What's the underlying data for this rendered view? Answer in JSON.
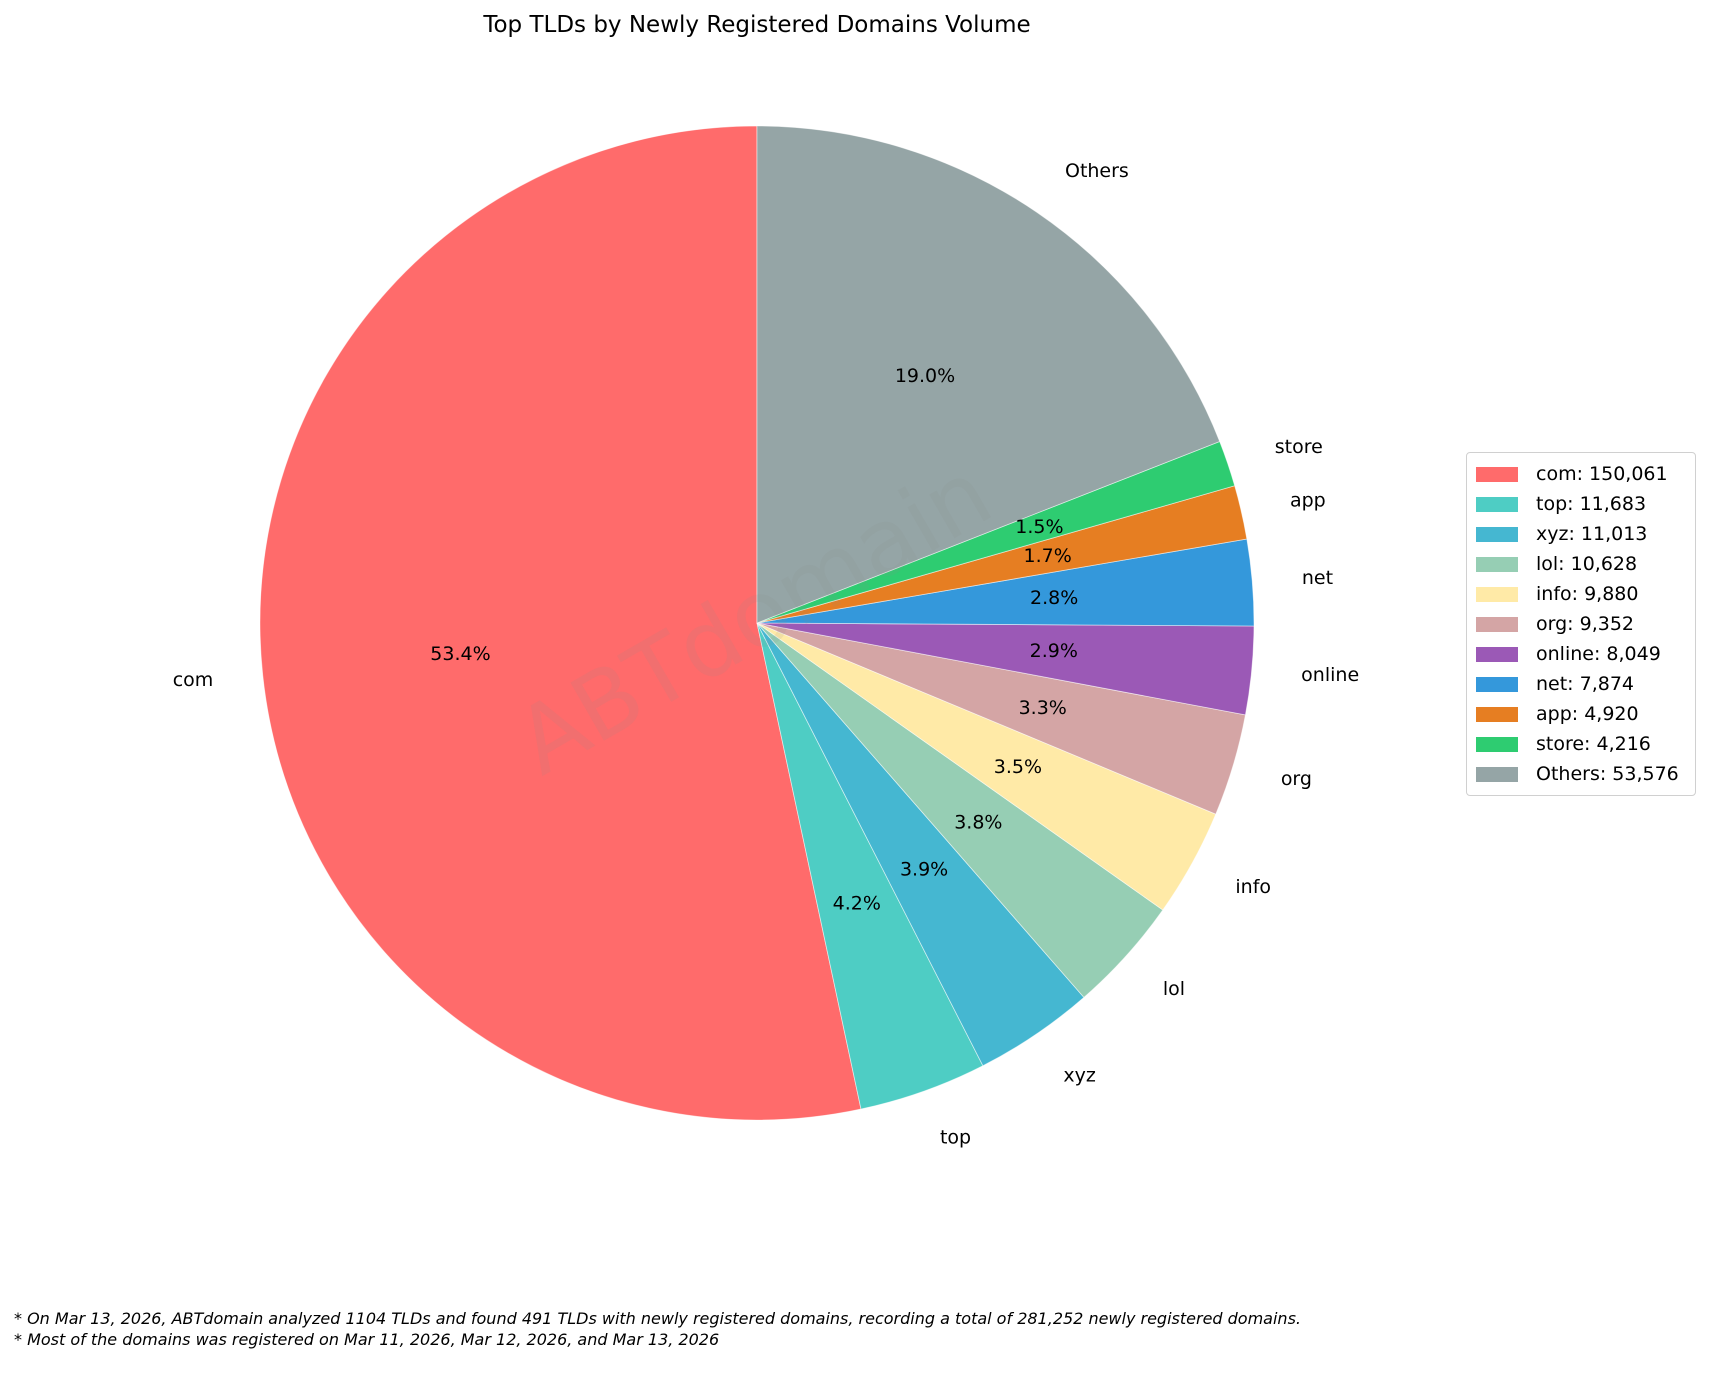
{
  "chart_data": {
    "type": "pie",
    "title": "Top TLDs by Newly Registered Domains Volume",
    "start_angle_deg": 90,
    "counterclock": true,
    "categories": [
      "com",
      "top",
      "xyz",
      "lol",
      "info",
      "org",
      "online",
      "net",
      "app",
      "store",
      "Others"
    ],
    "values": [
      150061,
      11683,
      11013,
      10628,
      9880,
      9352,
      8049,
      7874,
      4920,
      4216,
      53576
    ],
    "percent_labels": [
      "53.4%",
      "4.2%",
      "3.9%",
      "3.8%",
      "3.5%",
      "3.3%",
      "2.9%",
      "2.8%",
      "1.7%",
      "1.5%",
      "19.0%"
    ],
    "colors": [
      "#FF6B6B",
      "#4ECDC4",
      "#45B7D1",
      "#96CEB4",
      "#FFEAA7",
      "#D4A5A5",
      "#9B59B6",
      "#3498DB",
      "#E67E22",
      "#2ECC71",
      "#95A5A6"
    ],
    "legend": {
      "position": "right",
      "entries": [
        "com: 150,061",
        "top: 11,683",
        "xyz: 11,013",
        "lol: 10,628",
        "info: 9,880",
        "org: 9,352",
        "online: 8,049",
        "net: 7,874",
        "app: 4,920",
        "store: 4,216",
        "Others: 53,576"
      ]
    },
    "watermark": "ABTdomain",
    "total": 281252
  },
  "footer": {
    "notes": [
      "* On Mar 13, 2026, ABTdomain analyzed 1104 TLDs and found 491 TLDs with newly registered domains, recording a total of 281,252 newly registered domains.",
      "* Most of the domains was registered on Mar 11, 2026, Mar 12, 2026, and Mar 13, 2026"
    ]
  }
}
